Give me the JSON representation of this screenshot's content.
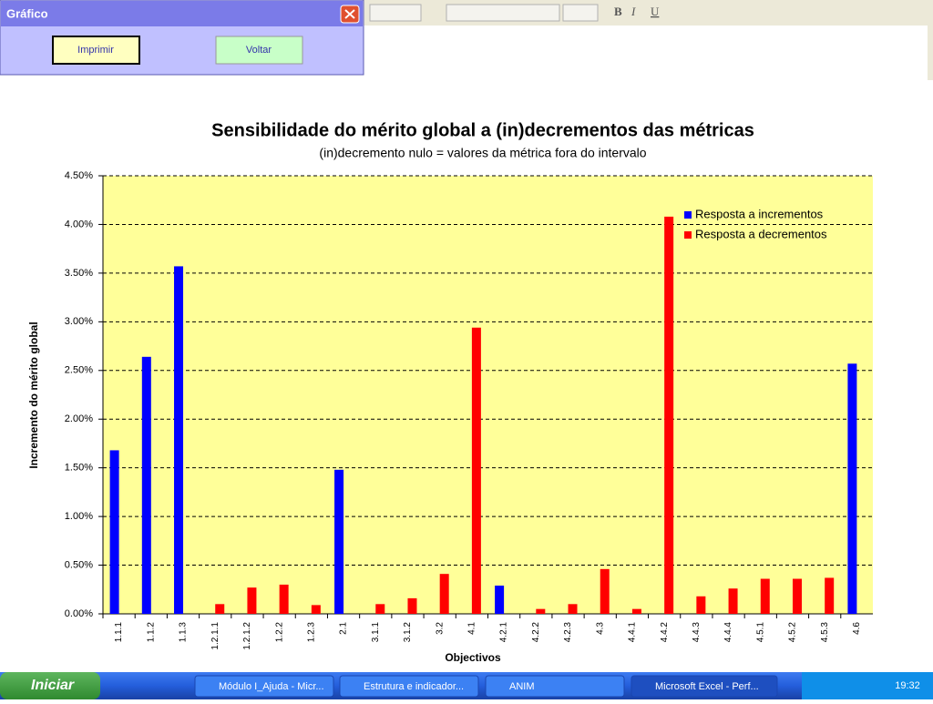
{
  "dialog": {
    "title": "Gráfico",
    "buttons": [
      "Imprimir",
      "Voltar"
    ]
  },
  "toolbar": {
    "bold": "B",
    "italic": "I",
    "underline": "U"
  },
  "taskbar": {
    "start": "Iniciar",
    "tasks": [
      "Módulo I_Ajuda - Micr...",
      "Estrutura e indicador...",
      "ANIM",
      "Microsoft Excel - Perf..."
    ],
    "clock": "19:32"
  },
  "chart_data": {
    "type": "bar",
    "title": "Sensibilidade do mérito global a (in)decrementos das métricas",
    "subtitle": "(in)decremento nulo = valores da métrica fora do intervalo",
    "x_label": "Objectivos",
    "y_label": "Incremento do mérito global",
    "categories": [
      "1.1.1",
      "1.1.2",
      "1.1.3",
      "1.2.1.1",
      "1.2.1.2",
      "1.2.2",
      "1.2.3",
      "2.1",
      "3.1.1",
      "3.1.2",
      "3.2",
      "4.1",
      "4.2.1",
      "4.2.2",
      "4.2.3",
      "4.3",
      "4.4.1",
      "4.4.2",
      "4.4.3",
      "4.4.4",
      "4.5.1",
      "4.5.2",
      "4.5.3",
      "4.6"
    ],
    "series": [
      {
        "name": "Resposta a incrementos",
        "color": "#0000ff",
        "values": [
          1.68,
          2.64,
          3.57,
          null,
          null,
          null,
          null,
          1.48,
          null,
          null,
          null,
          null,
          0.29,
          null,
          null,
          null,
          null,
          null,
          null,
          null,
          null,
          null,
          null,
          2.57
        ]
      },
      {
        "name": "Resposta a decrementos",
        "color": "#ff0000",
        "values": [
          null,
          null,
          null,
          0.1,
          0.27,
          0.3,
          0.09,
          null,
          0.1,
          0.16,
          0.41,
          2.94,
          null,
          0.05,
          0.1,
          0.46,
          0.05,
          4.08,
          0.18,
          0.26,
          0.36,
          0.36,
          0.37,
          null
        ]
      }
    ],
    "ylim": [
      0,
      4.5
    ],
    "yticks": [
      {
        "value": 0,
        "label": "0.00%"
      },
      {
        "value": 0.5,
        "label": "0.50%"
      },
      {
        "value": 1,
        "label": "1.00%"
      },
      {
        "value": 1.5,
        "label": "1.50%"
      },
      {
        "value": 2,
        "label": "2.00%"
      },
      {
        "value": 2.5,
        "label": "2.50%"
      },
      {
        "value": 3,
        "label": "3.00%"
      },
      {
        "value": 3.5,
        "label": "3.50%"
      },
      {
        "value": 4,
        "label": "4.00%"
      },
      {
        "value": 4.5,
        "label": "4.50%"
      }
    ],
    "grid": true,
    "plot_color": "#ffff99",
    "legend": "top-right"
  }
}
